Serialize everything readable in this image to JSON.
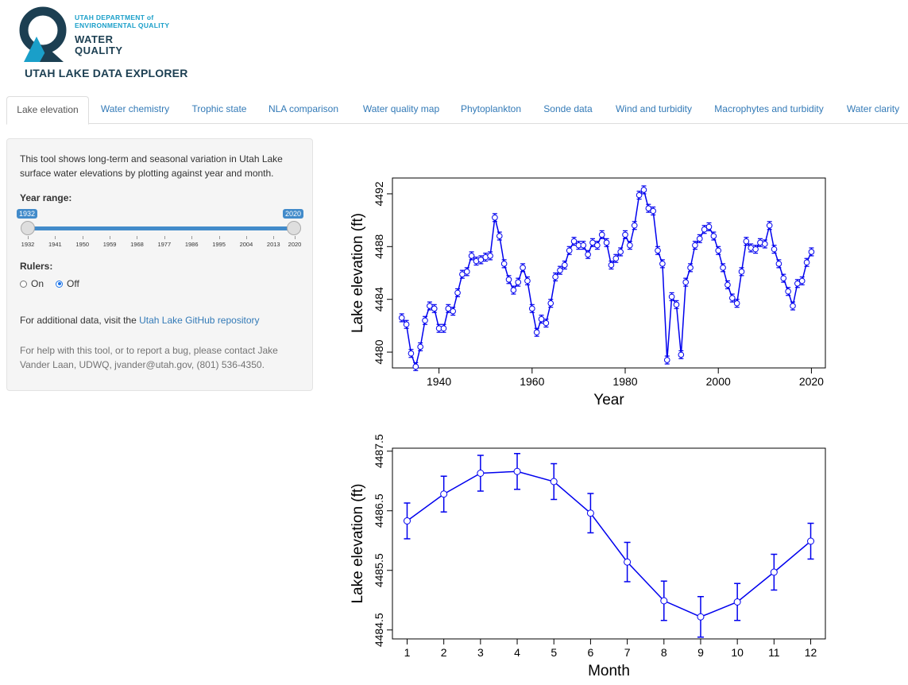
{
  "header": {
    "org_line1": "UTAH DEPARTMENT of",
    "org_line2": "ENVIRONMENTAL QUALITY",
    "wq_line1": "WATER",
    "wq_line2": "QUALITY",
    "app_title": "UTAH LAKE DATA EXPLORER",
    "colors": {
      "navy": "#1c3f52",
      "teal": "#1a9fc9"
    }
  },
  "tabs": [
    {
      "label": "Lake elevation",
      "active": true
    },
    {
      "label": "Water chemistry"
    },
    {
      "label": "Trophic state"
    },
    {
      "label": "NLA comparison"
    },
    {
      "label": "Water quality map"
    },
    {
      "label": "Phytoplankton"
    },
    {
      "label": "Sonde data"
    },
    {
      "label": "Wind and turbidity"
    },
    {
      "label": "Macrophytes and turbidity"
    },
    {
      "label": "Water clarity"
    }
  ],
  "sidebar": {
    "description": "This tool shows long-term and seasonal variation in Utah Lake surface water elevations by plotting against year and month.",
    "year_range_label": "Year range:",
    "slider": {
      "min_value": "1932",
      "max_value": "2020",
      "tick_labels": [
        "1932",
        "1941",
        "1950",
        "1959",
        "1968",
        "1977",
        "1986",
        "1995",
        "2004",
        "2013",
        "2020"
      ]
    },
    "rulers_label": "Rulers:",
    "rulers_options": [
      {
        "label": "On",
        "checked": false
      },
      {
        "label": "Off",
        "checked": true
      }
    ],
    "additional_text": "For additional data, visit the",
    "github_link": "Utah Lake GitHub repository",
    "help_text": "For help with this tool, or to report a bug, please contact Jake Vander Laan, UDWQ, jvander@utah.gov, (801) 536-4350."
  },
  "chart_data": [
    {
      "type": "line",
      "xlabel": "Year",
      "ylabel": "Lake elevation (ft)",
      "xlim": [
        1930,
        2023
      ],
      "ylim": [
        4478.8,
        4493.2
      ],
      "xticks": [
        1940,
        1960,
        1980,
        2000,
        2020
      ],
      "yticks": [
        4480,
        4484,
        4488,
        4492
      ],
      "color": "#0000ee",
      "x": [
        1932,
        1933,
        1934,
        1935,
        1936,
        1937,
        1938,
        1939,
        1940,
        1941,
        1942,
        1943,
        1944,
        1945,
        1946,
        1947,
        1948,
        1949,
        1950,
        1951,
        1952,
        1953,
        1954,
        1955,
        1956,
        1957,
        1958,
        1959,
        1960,
        1961,
        1962,
        1963,
        1964,
        1965,
        1966,
        1967,
        1968,
        1969,
        1970,
        1971,
        1972,
        1973,
        1974,
        1975,
        1976,
        1977,
        1978,
        1979,
        1980,
        1981,
        1982,
        1983,
        1984,
        1985,
        1986,
        1987,
        1988,
        1989,
        1990,
        1991,
        1992,
        1993,
        1994,
        1995,
        1996,
        1997,
        1998,
        1999,
        2000,
        2001,
        2002,
        2003,
        2004,
        2005,
        2006,
        2007,
        2008,
        2009,
        2010,
        2011,
        2012,
        2013,
        2014,
        2015,
        2016,
        2017,
        2018,
        2019,
        2020
      ],
      "y": [
        4482.6,
        4482.1,
        4479.9,
        4478.9,
        4480.4,
        4482.4,
        4483.5,
        4483.3,
        4481.8,
        4481.8,
        4483.3,
        4483.1,
        4484.5,
        4485.9,
        4486.1,
        4487.3,
        4486.9,
        4487.0,
        4487.2,
        4487.3,
        4490.2,
        4488.8,
        4486.7,
        4485.5,
        4484.7,
        4485.3,
        4486.4,
        4485.4,
        4483.3,
        4481.5,
        4482.5,
        4482.2,
        4483.7,
        4485.7,
        4486.2,
        4486.6,
        4487.7,
        4488.4,
        4488.1,
        4488.1,
        4487.4,
        4488.3,
        4488.1,
        4488.9,
        4488.3,
        4486.6,
        4487.1,
        4487.6,
        4488.9,
        4488.1,
        4489.6,
        4491.9,
        4492.3,
        4490.9,
        4490.7,
        4487.7,
        4486.7,
        4479.4,
        4484.2,
        4483.6,
        4479.8,
        4485.3,
        4486.4,
        4488.1,
        4488.6,
        4489.3,
        4489.5,
        4488.8,
        4487.7,
        4486.4,
        4485.1,
        4484.1,
        4483.7,
        4486.1,
        4488.4,
        4487.9,
        4487.8,
        4488.3,
        4488.2,
        4489.6,
        4487.8,
        4486.7,
        4485.6,
        4484.6,
        4483.5,
        4485.2,
        4485.4,
        4486.8,
        4487.6
      ]
    },
    {
      "type": "line",
      "xlabel": "Month",
      "ylabel": "Lake elevation (ft)",
      "xlim": [
        0.6,
        12.4
      ],
      "ylim": [
        4484.35,
        4487.55
      ],
      "xticks": [
        1,
        2,
        3,
        4,
        5,
        6,
        7,
        8,
        9,
        10,
        11,
        12
      ],
      "yticks": [
        4484.5,
        4485.5,
        4486.5,
        4487.5
      ],
      "color": "#0000ee",
      "x": [
        1,
        2,
        3,
        4,
        5,
        6,
        7,
        8,
        9,
        10,
        11,
        12
      ],
      "y": [
        4486.33,
        4486.78,
        4487.13,
        4487.16,
        4486.99,
        4486.46,
        4485.64,
        4484.99,
        4484.72,
        4484.97,
        4485.47,
        4485.99
      ],
      "error_low": [
        4486.03,
        4486.48,
        4486.83,
        4486.86,
        4486.69,
        4486.13,
        4485.31,
        4484.66,
        4484.38,
        4484.66,
        4485.17,
        4485.69
      ],
      "error_high": [
        4486.63,
        4487.08,
        4487.43,
        4487.46,
        4487.29,
        4486.79,
        4485.97,
        4485.32,
        4485.06,
        4485.28,
        4485.77,
        4486.29
      ]
    }
  ]
}
